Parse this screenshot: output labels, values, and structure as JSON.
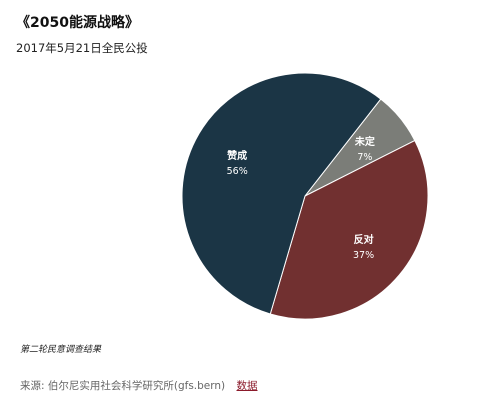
{
  "title": "《2050能源战略》",
  "subtitle": "2017年5月21日全民公投",
  "chart_data": {
    "type": "pie",
    "slices": [
      {
        "label": "赞成",
        "value": 56,
        "value_label": "56%",
        "color": "#1b3545"
      },
      {
        "label": "反对",
        "value": 37,
        "value_label": "37%",
        "color": "#713030"
      },
      {
        "label": "未定",
        "value": 7,
        "value_label": "7%",
        "color": "#7b7d78"
      }
    ]
  },
  "note": "第二轮民意调查结果",
  "source": {
    "text": "来源: 伯尔尼实用社会科学研究所(gfs.bern)",
    "link_label": "数据"
  }
}
